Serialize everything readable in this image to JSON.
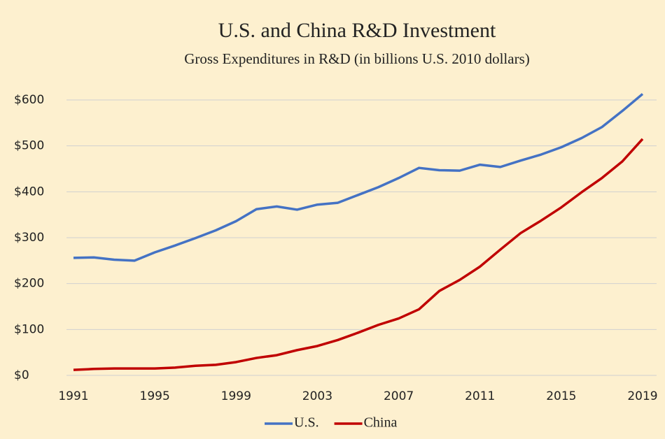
{
  "chart_data": {
    "type": "line",
    "title": "U.S. and China R&D Investment",
    "subtitle": "Gross Expenditures in R&D (in billions U.S. 2010 dollars)",
    "x": [
      1991,
      1992,
      1993,
      1994,
      1995,
      1996,
      1997,
      1998,
      1999,
      2000,
      2001,
      2002,
      2003,
      2004,
      2005,
      2006,
      2007,
      2008,
      2009,
      2010,
      2011,
      2012,
      2013,
      2014,
      2015,
      2016,
      2017,
      2018,
      2019
    ],
    "series": [
      {
        "name": "U.S.",
        "color": "#4472c4",
        "values": [
          256,
          257,
          252,
          250,
          268,
          283,
          299,
          316,
          336,
          362,
          368,
          361,
          372,
          376,
          393,
          410,
          430,
          452,
          447,
          446,
          459,
          454,
          468,
          481,
          497,
          517,
          541,
          576,
          613
        ]
      },
      {
        "name": "China",
        "color": "#c00000",
        "values": [
          12,
          14,
          15,
          15,
          15,
          17,
          21,
          23,
          29,
          38,
          44,
          55,
          64,
          77,
          93,
          110,
          124,
          144,
          184,
          208,
          237,
          274,
          310,
          337,
          366,
          399,
          430,
          466,
          515
        ]
      }
    ],
    "xlim": [
      1991,
      2019
    ],
    "xticks": [
      1991,
      1995,
      1999,
      2003,
      2007,
      2011,
      2015,
      2019
    ],
    "ylim": [
      0,
      600
    ],
    "yticks": [
      {
        "value": 0,
        "label": "$0"
      },
      {
        "value": 100,
        "label": "$100"
      },
      {
        "value": 200,
        "label": "$200"
      },
      {
        "value": 300,
        "label": "$300"
      },
      {
        "value": 400,
        "label": "$400"
      },
      {
        "value": 500,
        "label": "$500"
      },
      {
        "value": 600,
        "label": "$600"
      }
    ],
    "grid": true,
    "legend": "bottom"
  }
}
